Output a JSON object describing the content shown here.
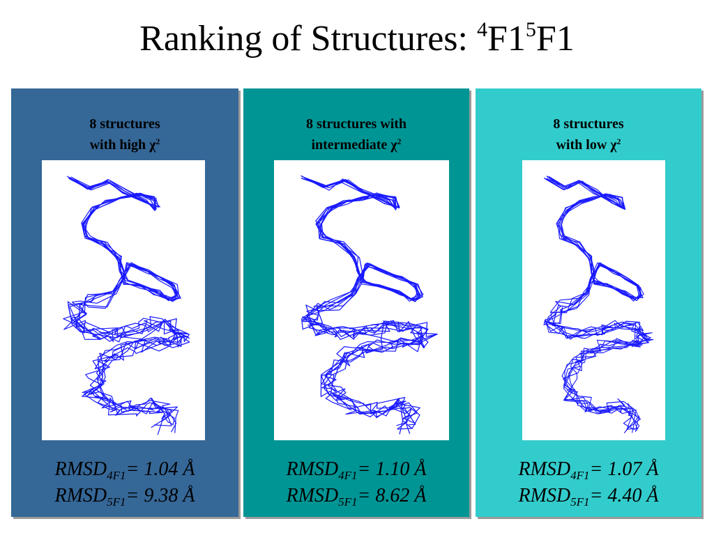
{
  "title": {
    "text": "Ranking of Structures: ",
    "sup1": "4",
    "mid": "F1",
    "sup2": "5",
    "end": "F1"
  },
  "colors": {
    "panel1": "#356797",
    "panel2": "#009595",
    "panel3": "#33CCCC",
    "trace": "#1a1aff"
  },
  "panels": [
    {
      "caption_line1": "8 structures",
      "caption_line2": "with high χ",
      "caption_sup": "2",
      "image_icon": "protein-structure-ensemble",
      "rmsd": [
        {
          "label": "RMSD",
          "sub": "4F1",
          "value": "= 1.04 Å"
        },
        {
          "label": "RMSD",
          "sub": "5F1",
          "value": "= 9.38 Å"
        }
      ]
    },
    {
      "caption_line1": "8 structures with",
      "caption_line2": "intermediate χ",
      "caption_sup": "2",
      "image_icon": "protein-structure-ensemble",
      "rmsd": [
        {
          "label": "RMSD",
          "sub": "4F1",
          "value": "= 1.10 Å"
        },
        {
          "label": "RMSD",
          "sub": "5F1",
          "value": "= 8.62 Å"
        }
      ]
    },
    {
      "caption_line1": "8 structures",
      "caption_line2": "with low χ",
      "caption_sup": "2",
      "image_icon": "protein-structure-ensemble",
      "rmsd": [
        {
          "label": "RMSD",
          "sub": "4F1",
          "value": "= 1.07 Å"
        },
        {
          "label": "RMSD",
          "sub": "5F1",
          "value": "= 4.40 Å"
        }
      ]
    }
  ]
}
